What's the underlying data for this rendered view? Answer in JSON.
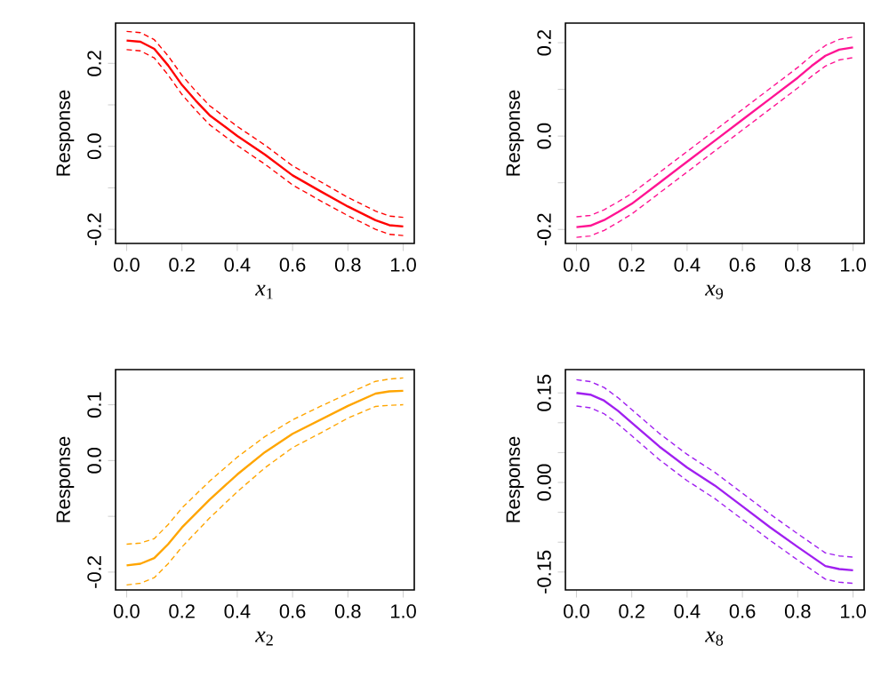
{
  "chart_data": [
    {
      "type": "line",
      "xlabel": "*x*$_{1}$",
      "ylabel": "Response",
      "xlim": [
        -0.04,
        1.04
      ],
      "ylim": [
        -0.234,
        0.297
      ],
      "xticks": [
        {
          "value": 0,
          "label": "0.0"
        },
        {
          "value": 0.2,
          "label": "0.2"
        },
        {
          "value": 0.4,
          "label": "0.4"
        },
        {
          "value": 0.6,
          "label": "0.6"
        },
        {
          "value": 0.8,
          "label": "0.8"
        },
        {
          "value": 1,
          "label": "1.0"
        }
      ],
      "yticks": [
        {
          "value": -0.2,
          "label": "-0.2"
        },
        {
          "value": -0.1,
          "label": null
        },
        {
          "value": 0,
          "label": "0.0"
        },
        {
          "value": 0.1,
          "label": null
        },
        {
          "value": 0.2,
          "label": "0.2"
        }
      ],
      "x": [
        0,
        0.05,
        0.1,
        0.15,
        0.2,
        0.25,
        0.3,
        0.4,
        0.5,
        0.6,
        0.7,
        0.8,
        0.9,
        0.95,
        1.0
      ],
      "series": [
        {
          "color": "#ff0000",
          "line_style": "solid",
          "values": [
            0.255,
            0.252,
            0.235,
            0.195,
            0.148,
            0.11,
            0.075,
            0.025,
            -0.02,
            -0.07,
            -0.108,
            -0.145,
            -0.178,
            -0.19,
            -0.193
          ]
        },
        {
          "color": "#ff0000",
          "line_style": "dashed",
          "values": [
            0.277,
            0.274,
            0.257,
            0.218,
            0.171,
            0.133,
            0.098,
            0.048,
            0.003,
            -0.047,
            -0.085,
            -0.123,
            -0.156,
            -0.168,
            -0.171
          ]
        },
        {
          "color": "#ff0000",
          "line_style": "dashed",
          "values": [
            0.233,
            0.23,
            0.213,
            0.172,
            0.125,
            0.087,
            0.052,
            0.002,
            -0.043,
            -0.093,
            -0.131,
            -0.167,
            -0.2,
            -0.212,
            -0.215
          ]
        }
      ]
    },
    {
      "type": "line",
      "xlabel": "*x*$_{9}$",
      "ylabel": "Response",
      "xlim": [
        -0.04,
        1.04
      ],
      "ylim": [
        -0.23,
        0.242
      ],
      "xticks": [
        {
          "value": 0,
          "label": "0.0"
        },
        {
          "value": 0.2,
          "label": "0.2"
        },
        {
          "value": 0.4,
          "label": "0.4"
        },
        {
          "value": 0.6,
          "label": "0.6"
        },
        {
          "value": 0.8,
          "label": "0.8"
        },
        {
          "value": 1,
          "label": "1.0"
        }
      ],
      "yticks": [
        {
          "value": -0.2,
          "label": "-0.2"
        },
        {
          "value": -0.1,
          "label": null
        },
        {
          "value": 0,
          "label": "0.0"
        },
        {
          "value": 0.1,
          "label": null
        },
        {
          "value": 0.2,
          "label": "0.2"
        }
      ],
      "x": [
        0,
        0.05,
        0.1,
        0.15,
        0.2,
        0.3,
        0.4,
        0.5,
        0.6,
        0.7,
        0.8,
        0.85,
        0.9,
        0.95,
        1.0
      ],
      "series": [
        {
          "color": "#ff1493",
          "line_style": "solid",
          "values": [
            -0.195,
            -0.192,
            -0.18,
            -0.163,
            -0.145,
            -0.1,
            -0.055,
            -0.01,
            0.035,
            0.08,
            0.125,
            0.15,
            0.172,
            0.185,
            0.19
          ]
        },
        {
          "color": "#ff1493",
          "line_style": "dashed",
          "values": [
            -0.173,
            -0.17,
            -0.158,
            -0.141,
            -0.123,
            -0.078,
            -0.033,
            0.012,
            0.057,
            0.102,
            0.147,
            0.172,
            0.194,
            0.207,
            0.212
          ]
        },
        {
          "color": "#ff1493",
          "line_style": "dashed",
          "values": [
            -0.217,
            -0.214,
            -0.202,
            -0.185,
            -0.167,
            -0.122,
            -0.077,
            -0.032,
            0.013,
            0.058,
            0.103,
            0.128,
            0.15,
            0.163,
            0.168
          ]
        }
      ]
    },
    {
      "type": "line",
      "xlabel": "*x*$_{2}$",
      "ylabel": "Response",
      "xlim": [
        -0.04,
        1.04
      ],
      "ylim": [
        -0.232,
        0.163
      ],
      "xticks": [
        {
          "value": 0,
          "label": "0.0"
        },
        {
          "value": 0.2,
          "label": "0.2"
        },
        {
          "value": 0.4,
          "label": "0.4"
        },
        {
          "value": 0.6,
          "label": "0.6"
        },
        {
          "value": 0.8,
          "label": "0.8"
        },
        {
          "value": 1,
          "label": "1.0"
        }
      ],
      "yticks": [
        {
          "value": -0.2,
          "label": "-0.2"
        },
        {
          "value": -0.1,
          "label": null
        },
        {
          "value": 0,
          "label": "0.0"
        },
        {
          "value": 0.1,
          "label": "0.1"
        }
      ],
      "x": [
        0,
        0.05,
        0.1,
        0.15,
        0.2,
        0.3,
        0.4,
        0.5,
        0.6,
        0.7,
        0.8,
        0.9,
        0.95,
        1.0
      ],
      "series": [
        {
          "color": "#ffa500",
          "line_style": "solid",
          "values": [
            -0.188,
            -0.185,
            -0.175,
            -0.15,
            -0.12,
            -0.07,
            -0.025,
            0.015,
            0.048,
            0.073,
            0.098,
            0.12,
            0.124,
            0.125
          ]
        },
        {
          "color": "#ffa500",
          "line_style": "dashed",
          "values": [
            -0.15,
            -0.148,
            -0.14,
            -0.115,
            -0.085,
            -0.037,
            0.006,
            0.043,
            0.073,
            0.097,
            0.12,
            0.142,
            0.146,
            0.148
          ]
        },
        {
          "color": "#ffa500",
          "line_style": "dashed",
          "values": [
            -0.223,
            -0.22,
            -0.21,
            -0.185,
            -0.155,
            -0.103,
            -0.056,
            -0.013,
            0.023,
            0.049,
            0.076,
            0.097,
            0.099,
            0.1
          ]
        }
      ]
    },
    {
      "type": "line",
      "xlabel": "*x*$_{8}$",
      "ylabel": "Response",
      "xlim": [
        -0.04,
        1.04
      ],
      "ylim": [
        -0.18,
        0.189
      ],
      "xticks": [
        {
          "value": 0,
          "label": "0.0"
        },
        {
          "value": 0.2,
          "label": "0.2"
        },
        {
          "value": 0.4,
          "label": "0.4"
        },
        {
          "value": 0.6,
          "label": "0.6"
        },
        {
          "value": 0.8,
          "label": "0.8"
        },
        {
          "value": 1,
          "label": "1.0"
        }
      ],
      "yticks": [
        {
          "value": -0.15,
          "label": "-0.15"
        },
        {
          "value": -0.1,
          "label": null
        },
        {
          "value": -0.05,
          "label": null
        },
        {
          "value": 0,
          "label": "0.00"
        },
        {
          "value": 0.05,
          "label": null
        },
        {
          "value": 0.1,
          "label": null
        },
        {
          "value": 0.15,
          "label": "0.15"
        }
      ],
      "x": [
        0,
        0.05,
        0.1,
        0.15,
        0.2,
        0.3,
        0.4,
        0.5,
        0.6,
        0.7,
        0.8,
        0.9,
        0.95,
        1.0
      ],
      "series": [
        {
          "color": "#a020f0",
          "line_style": "solid",
          "values": [
            0.15,
            0.147,
            0.137,
            0.12,
            0.1,
            0.06,
            0.025,
            -0.005,
            -0.04,
            -0.075,
            -0.108,
            -0.14,
            -0.145,
            -0.147
          ]
        },
        {
          "color": "#a020f0",
          "line_style": "dashed",
          "values": [
            0.172,
            0.169,
            0.159,
            0.142,
            0.122,
            0.082,
            0.047,
            0.017,
            -0.018,
            -0.053,
            -0.086,
            -0.118,
            -0.123,
            -0.125
          ]
        },
        {
          "color": "#a020f0",
          "line_style": "dashed",
          "values": [
            0.128,
            0.125,
            0.115,
            0.098,
            0.078,
            0.038,
            0.003,
            -0.027,
            -0.062,
            -0.097,
            -0.13,
            -0.162,
            -0.167,
            -0.169
          ]
        }
      ]
    }
  ]
}
